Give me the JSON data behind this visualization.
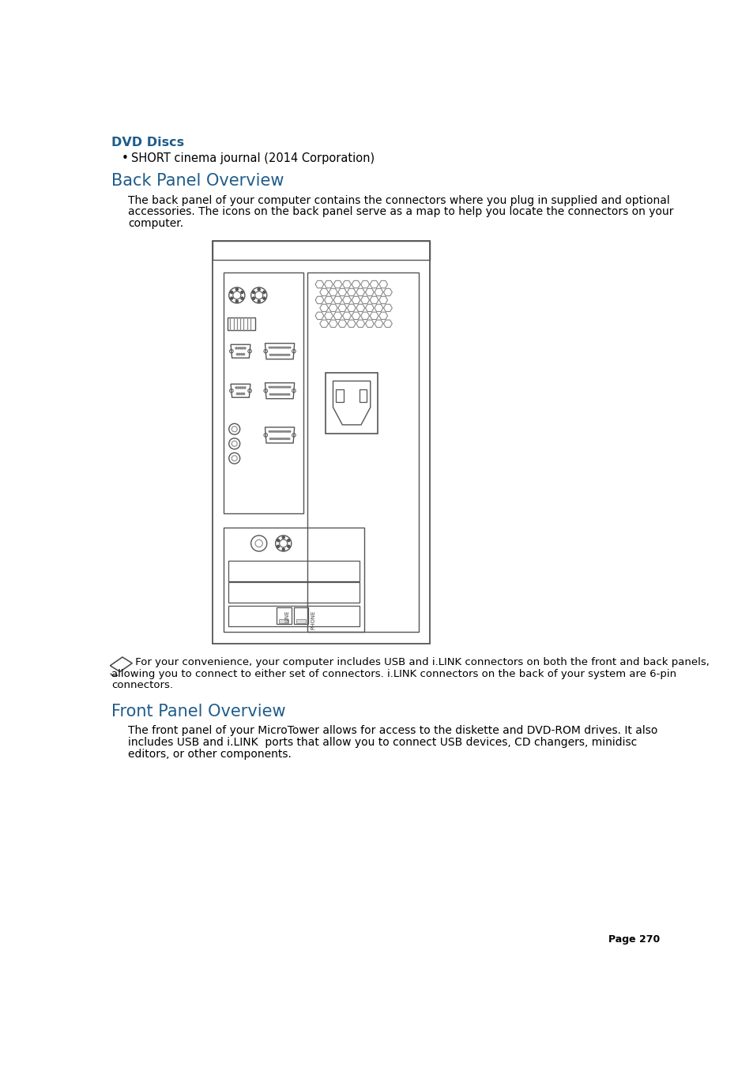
{
  "title_dvd": "DVD Discs",
  "bullet_dvd": "SHORT cinema journal (2014 Corporation)",
  "title_back": "Back Panel Overview",
  "lines_back": [
    "The back panel of your computer contains the connectors where you plug in supplied and optional",
    "accessories. The icons on the back panel serve as a map to help you locate the connectors on your",
    "computer."
  ],
  "note_lines": [
    " For your convenience, your computer includes USB and i.LINK connectors on both the front and back panels,",
    "allowing you to connect to either set of connectors. i.LINK connectors on the back of your system are 6-pin",
    "connectors."
  ],
  "title_front": "Front Panel Overview",
  "lines_front": [
    "The front panel of your MicroTower allows for access to the diskette and DVD-ROM drives. It also",
    "includes USB and i.LINK  ports that allow you to connect USB devices, CD changers, minidisc",
    "editors, or other components."
  ],
  "page_num": "Page 270",
  "bg_color": "#ffffff",
  "title_color": "#1f5c8b",
  "body_color": "#000000",
  "edge_color": "#555555",
  "edge_color2": "#888888"
}
